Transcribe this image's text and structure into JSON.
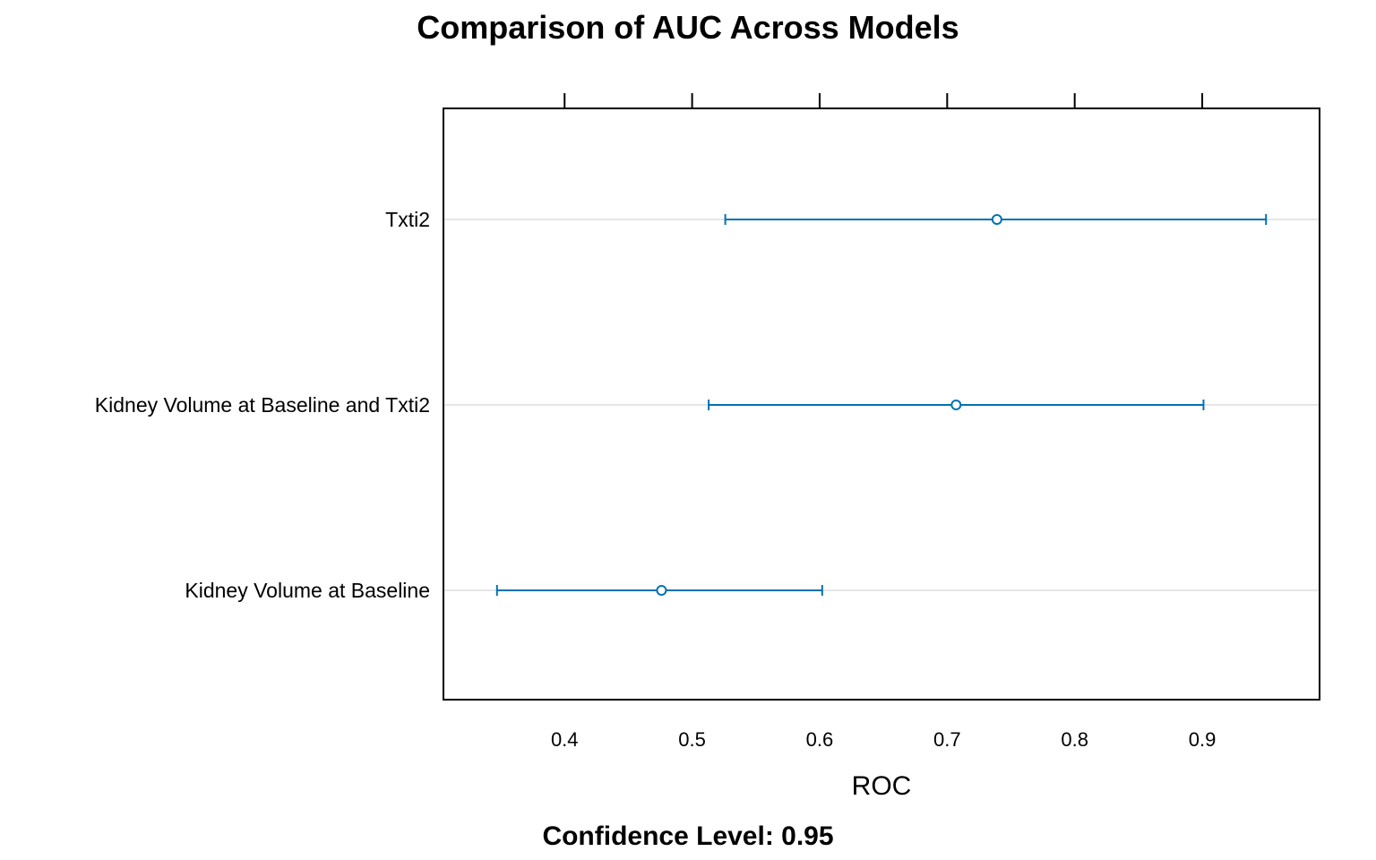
{
  "chart_data": {
    "type": "dotplot-ci",
    "title": "Comparison of AUC Across Models",
    "xlabel": "ROC",
    "caption": "Confidence Level: 0.95",
    "xlim": [
      0.305,
      0.992
    ],
    "xticks": [
      0.4,
      0.5,
      0.6,
      0.7,
      0.8,
      0.9
    ],
    "xtick_labels": [
      "0.4",
      "0.5",
      "0.6",
      "0.7",
      "0.8",
      "0.9"
    ],
    "grid": "horizontal",
    "color": "#0072B2",
    "categories": [
      "Txti2",
      "Kidney Volume at Baseline and Txti2",
      "Kidney Volume at Baseline"
    ],
    "estimates": [
      0.739,
      0.707,
      0.476
    ],
    "lower": [
      0.526,
      0.513,
      0.347
    ],
    "upper": [
      0.95,
      0.901,
      0.602
    ]
  }
}
